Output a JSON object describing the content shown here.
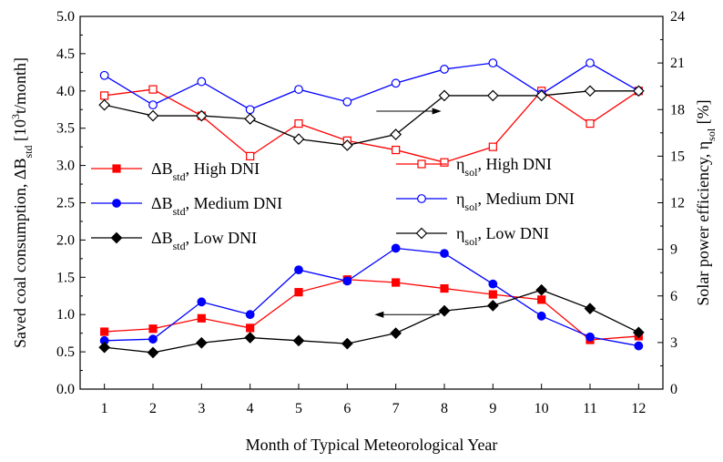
{
  "chart_data": {
    "type": "line",
    "xlabel": "Month of Typical Meteorological Year",
    "ylabel_left": {
      "prefix": "Saved coal consumption, ",
      "sym": "ΔB",
      "sub": "std",
      "mid": " [10",
      "sup": "3",
      "suffix": "t/month]"
    },
    "ylabel_right": {
      "prefix": "Solar power efficiency, ",
      "sym": "η",
      "sub": "sol",
      "suffix": " [%]"
    },
    "x": [
      1,
      2,
      3,
      4,
      5,
      6,
      7,
      8,
      9,
      10,
      11,
      12
    ],
    "xlim": [
      0.5,
      12.5
    ],
    "y_left_lim": [
      0,
      5.0
    ],
    "y_left_ticks": [
      "0.0",
      "0.5",
      "1.0",
      "1.5",
      "2.0",
      "2.5",
      "3.0",
      "3.5",
      "4.0",
      "4.5",
      "5.0"
    ],
    "y_right_lim": [
      0,
      24
    ],
    "y_right_ticks": [
      "0",
      "3",
      "6",
      "9",
      "12",
      "15",
      "18",
      "21",
      "24"
    ],
    "x_ticks": [
      "1",
      "2",
      "3",
      "4",
      "5",
      "6",
      "7",
      "8",
      "9",
      "10",
      "11",
      "12"
    ],
    "grid": false,
    "legend_position": "middle",
    "colors": {
      "high": "#ff0000",
      "medium": "#0000ff",
      "low": "#000000"
    },
    "series": [
      {
        "name": "ΔBstd, High DNI",
        "label_sym": "ΔB",
        "label_sub": "std",
        "label_rest": ", High DNI",
        "axis": "left",
        "color_key": "high",
        "marker": "square-filled",
        "values": [
          0.77,
          0.81,
          0.95,
          0.82,
          1.3,
          1.47,
          1.43,
          1.35,
          1.27,
          1.2,
          0.66,
          0.71
        ]
      },
      {
        "name": "ΔBstd, Medium DNI",
        "label_sym": "ΔB",
        "label_sub": "std",
        "label_rest": ", Medium DNI",
        "axis": "left",
        "color_key": "medium",
        "marker": "circle-filled",
        "values": [
          0.65,
          0.67,
          1.17,
          1.0,
          1.6,
          1.45,
          1.89,
          1.82,
          1.41,
          0.98,
          0.7,
          0.58
        ]
      },
      {
        "name": "ΔBstd, Low DNI",
        "label_sym": "ΔB",
        "label_sub": "std",
        "label_rest": ", Low DNI",
        "axis": "left",
        "color_key": "low",
        "marker": "diamond-filled",
        "values": [
          0.56,
          0.49,
          0.62,
          0.69,
          0.65,
          0.61,
          0.75,
          1.05,
          1.12,
          1.33,
          1.08,
          0.76
        ]
      },
      {
        "name": "ηsol, High DNI",
        "label_sym": "η",
        "label_sub": "sol",
        "label_rest": ", High DNI",
        "axis": "right",
        "color_key": "high",
        "marker": "square-open",
        "values": [
          18.9,
          19.3,
          17.6,
          15.0,
          17.1,
          16.0,
          15.4,
          14.6,
          15.6,
          19.2,
          17.1,
          19.2
        ]
      },
      {
        "name": "ηsol, Medium DNI",
        "label_sym": "η",
        "label_sub": "sol",
        "label_rest": ", Medium DNI",
        "axis": "right",
        "color_key": "medium",
        "marker": "circle-open",
        "values": [
          20.2,
          18.3,
          19.8,
          18.0,
          19.3,
          18.5,
          19.7,
          20.6,
          21.0,
          19.0,
          21.0,
          19.2
        ]
      },
      {
        "name": "ηsol, Low DNI",
        "label_sym": "η",
        "label_sub": "sol",
        "label_rest": ", Low DNI",
        "axis": "right",
        "color_key": "low",
        "marker": "diamond-open",
        "values": [
          18.3,
          17.6,
          17.6,
          17.4,
          16.1,
          15.7,
          16.4,
          18.9,
          18.9,
          18.9,
          19.2,
          19.2
        ]
      }
    ],
    "annotations": [
      {
        "type": "arrow",
        "direction": "right",
        "at_x": 6.6,
        "at_y_right": 17.9,
        "length_x": 1.3
      },
      {
        "type": "arrow",
        "direction": "left",
        "at_x": 6.6,
        "at_y_left": 1.0,
        "length_x": 1.3
      }
    ]
  }
}
